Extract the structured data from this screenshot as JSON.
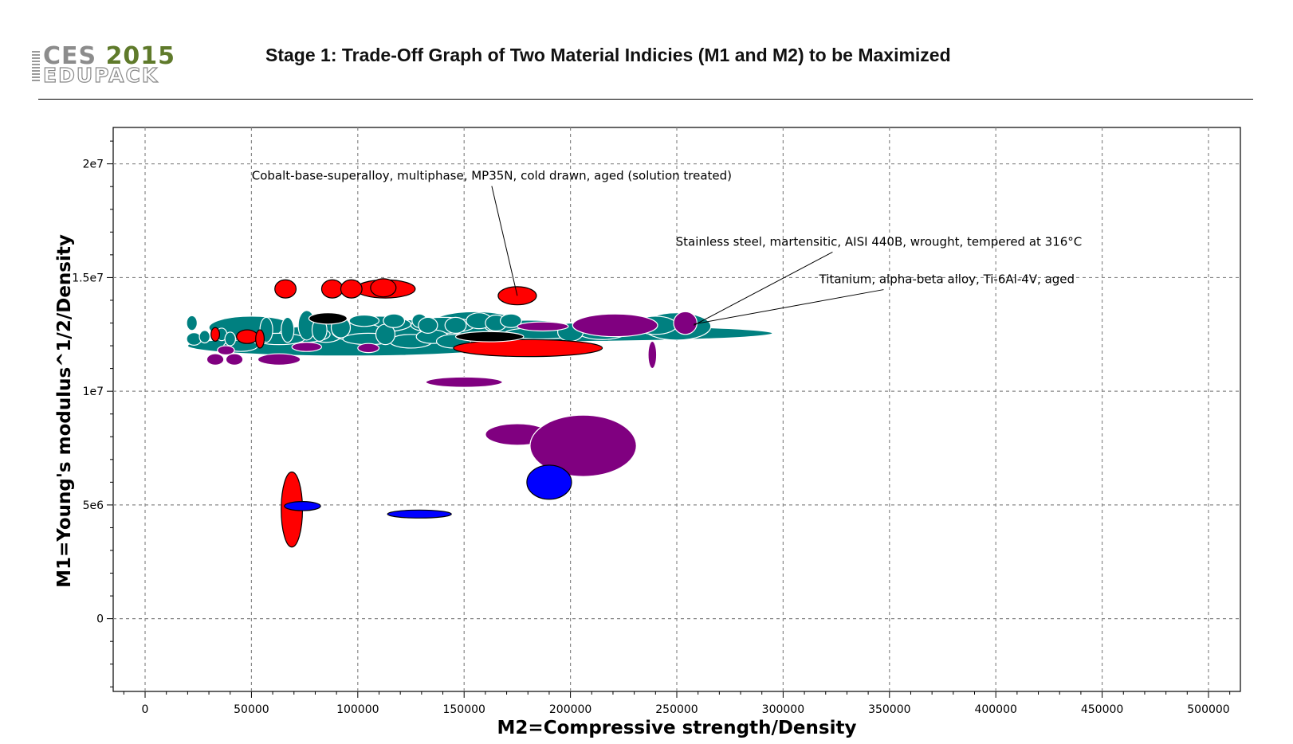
{
  "header": {
    "logo_main": "CES 2015",
    "logo_sub": "EDUPACK",
    "title": "Stage 1: Trade-Off Graph of Two Material Indicies (M1 and M2) to be Maximized"
  },
  "colors": {
    "teal": "#008080",
    "purple": "#800080",
    "red": "#ff0000",
    "black": "#000000",
    "blue": "#0000ff",
    "logo_dark": "#8c8c8c",
    "logo_green": "#5f7a2b"
  },
  "chart_data": {
    "type": "scatter",
    "subtype": "bubble-ellipses",
    "title": "",
    "xlabel": "M2=Compressive strength/Density",
    "ylabel": "M1=Young's modulus^1/2/Density",
    "xlim": [
      -15000,
      515000
    ],
    "ylim": [
      -3200000,
      21600000
    ],
    "x_ticks": [
      {
        "v": 0,
        "label": "0"
      },
      {
        "v": 50000,
        "label": "50000"
      },
      {
        "v": 100000,
        "label": "100000"
      },
      {
        "v": 150000,
        "label": "150000"
      },
      {
        "v": 200000,
        "label": "200000"
      },
      {
        "v": 250000,
        "label": "250000"
      },
      {
        "v": 300000,
        "label": "300000"
      },
      {
        "v": 350000,
        "label": "350000"
      },
      {
        "v": 400000,
        "label": "400000"
      },
      {
        "v": 450000,
        "label": "450000"
      },
      {
        "v": 500000,
        "label": "500000"
      }
    ],
    "y_ticks": [
      {
        "v": 0,
        "label": "0"
      },
      {
        "v": 5000000,
        "label": "5e6"
      },
      {
        "v": 10000000,
        "label": "1e7"
      },
      {
        "v": 15000000,
        "label": "1.5e7"
      },
      {
        "v": 20000000,
        "label": "2e7"
      }
    ],
    "grid": true,
    "legend": "none",
    "note": "Each material is drawn as an ellipse spanning its property range: x = M2 centre, y = M1 centre, w = M2 range width, h = M1 range height.",
    "series": [
      {
        "color": "teal",
        "items": [
          {
            "x": 170000,
            "y": 12550000,
            "w": 250000,
            "h": 750000
          },
          {
            "x": 95000,
            "y": 12000000,
            "w": 150000,
            "h": 900000
          },
          {
            "x": 50000,
            "y": 12800000,
            "w": 40000,
            "h": 1000000
          },
          {
            "x": 120000,
            "y": 12700000,
            "w": 40000,
            "h": 900000
          },
          {
            "x": 155000,
            "y": 13000000,
            "w": 40000,
            "h": 1000000
          },
          {
            "x": 85000,
            "y": 12800000,
            "w": 20000,
            "h": 1300000
          },
          {
            "x": 110000,
            "y": 12950000,
            "w": 30000,
            "h": 700000
          },
          {
            "x": 140000,
            "y": 12900000,
            "w": 30000,
            "h": 700000
          },
          {
            "x": 180000,
            "y": 12800000,
            "w": 40000,
            "h": 650000
          },
          {
            "x": 215000,
            "y": 12650000,
            "w": 24000,
            "h": 750000
          },
          {
            "x": 75000,
            "y": 12500000,
            "w": 24000,
            "h": 700000
          },
          {
            "x": 100000,
            "y": 12600000,
            "w": 24000,
            "h": 800000
          },
          {
            "x": 105000,
            "y": 12300000,
            "w": 24000,
            "h": 500000
          },
          {
            "x": 125000,
            "y": 12200000,
            "w": 20000,
            "h": 600000
          },
          {
            "x": 135000,
            "y": 12400000,
            "w": 15000,
            "h": 600000
          },
          {
            "x": 160000,
            "y": 12300000,
            "w": 16000,
            "h": 600000
          },
          {
            "x": 145000,
            "y": 12200000,
            "w": 16000,
            "h": 600000
          },
          {
            "x": 63000,
            "y": 12300000,
            "w": 24000,
            "h": 500000
          },
          {
            "x": 45000,
            "y": 12000000,
            "w": 16000,
            "h": 500000
          },
          {
            "x": 23000,
            "y": 12300000,
            "w": 7000,
            "h": 550000
          },
          {
            "x": 22000,
            "y": 13000000,
            "w": 5000,
            "h": 650000
          },
          {
            "x": 28000,
            "y": 12400000,
            "w": 5000,
            "h": 550000
          },
          {
            "x": 36000,
            "y": 12500000,
            "w": 5000,
            "h": 550000
          },
          {
            "x": 40000,
            "y": 12300000,
            "w": 5000,
            "h": 600000
          },
          {
            "x": 57000,
            "y": 12700000,
            "w": 6000,
            "h": 1100000
          },
          {
            "x": 67000,
            "y": 12700000,
            "w": 6000,
            "h": 1100000
          },
          {
            "x": 76000,
            "y": 12900000,
            "w": 8000,
            "h": 1300000
          },
          {
            "x": 82000,
            "y": 12700000,
            "w": 7000,
            "h": 1000000
          },
          {
            "x": 92000,
            "y": 12800000,
            "w": 9000,
            "h": 900000
          },
          {
            "x": 103000,
            "y": 13100000,
            "w": 14000,
            "h": 500000
          },
          {
            "x": 113000,
            "y": 12500000,
            "w": 9000,
            "h": 900000
          },
          {
            "x": 117000,
            "y": 13100000,
            "w": 10000,
            "h": 600000
          },
          {
            "x": 129000,
            "y": 13100000,
            "w": 7000,
            "h": 600000
          },
          {
            "x": 133000,
            "y": 12900000,
            "w": 9000,
            "h": 700000
          },
          {
            "x": 146000,
            "y": 12900000,
            "w": 10000,
            "h": 700000
          },
          {
            "x": 157000,
            "y": 13100000,
            "w": 12000,
            "h": 700000
          },
          {
            "x": 165000,
            "y": 13000000,
            "w": 10000,
            "h": 700000
          },
          {
            "x": 172000,
            "y": 13100000,
            "w": 10000,
            "h": 600000
          },
          {
            "x": 186000,
            "y": 12550000,
            "w": 34000,
            "h": 500000
          },
          {
            "x": 200000,
            "y": 12600000,
            "w": 12000,
            "h": 800000
          },
          {
            "x": 250000,
            "y": 12850000,
            "w": 32000,
            "h": 1200000
          },
          {
            "x": 240000,
            "y": 12900000,
            "w": 20000,
            "h": 800000
          }
        ]
      },
      {
        "color": "purple",
        "items": [
          {
            "x": 221000,
            "y": 12900000,
            "w": 40000,
            "h": 1000000
          },
          {
            "x": 187000,
            "y": 12850000,
            "w": 24000,
            "h": 400000
          },
          {
            "x": 38000,
            "y": 11800000,
            "w": 8000,
            "h": 400000
          },
          {
            "x": 105000,
            "y": 11900000,
            "w": 10000,
            "h": 400000
          },
          {
            "x": 76000,
            "y": 11950000,
            "w": 14000,
            "h": 400000
          },
          {
            "x": 33000,
            "y": 11400000,
            "w": 8000,
            "h": 500000
          },
          {
            "x": 42000,
            "y": 11400000,
            "w": 8000,
            "h": 500000
          },
          {
            "x": 63000,
            "y": 11400000,
            "w": 20000,
            "h": 500000
          },
          {
            "x": 238500,
            "y": 11600000,
            "w": 4000,
            "h": 1200000
          },
          {
            "x": 150000,
            "y": 10400000,
            "w": 36000,
            "h": 450000
          },
          {
            "x": 175000,
            "y": 8100000,
            "w": 30000,
            "h": 950000
          },
          {
            "x": 206000,
            "y": 7600000,
            "w": 50000,
            "h": 2700000
          },
          {
            "x": 254000,
            "y": 13000000,
            "w": 11000,
            "h": 1000000
          }
        ]
      },
      {
        "color": "red",
        "items": [
          {
            "x": 180000,
            "y": 11900000,
            "w": 70000,
            "h": 750000
          },
          {
            "x": 113000,
            "y": 14500000,
            "w": 28000,
            "h": 800000
          },
          {
            "x": 66000,
            "y": 14500000,
            "w": 10000,
            "h": 800000
          },
          {
            "x": 88000,
            "y": 14500000,
            "w": 10000,
            "h": 800000
          },
          {
            "x": 97000,
            "y": 14500000,
            "w": 10000,
            "h": 800000
          },
          {
            "x": 112000,
            "y": 14550000,
            "w": 12000,
            "h": 800000
          },
          {
            "x": 175000,
            "y": 14200000,
            "w": 18000,
            "h": 800000
          },
          {
            "x": 48000,
            "y": 12400000,
            "w": 10000,
            "h": 600000
          },
          {
            "x": 54000,
            "y": 12300000,
            "w": 4000,
            "h": 800000
          },
          {
            "x": 33000,
            "y": 12500000,
            "w": 4000,
            "h": 600000
          },
          {
            "x": 69000,
            "y": 4800000,
            "w": 10000,
            "h": 3300000
          }
        ]
      },
      {
        "color": "black",
        "items": [
          {
            "x": 162000,
            "y": 12400000,
            "w": 32000,
            "h": 450000
          },
          {
            "x": 86000,
            "y": 13200000,
            "w": 18000,
            "h": 500000
          }
        ]
      },
      {
        "color": "blue",
        "items": [
          {
            "x": 190000,
            "y": 6000000,
            "w": 21000,
            "h": 1500000
          },
          {
            "x": 129000,
            "y": 4600000,
            "w": 30000,
            "h": 350000
          },
          {
            "x": 74000,
            "y": 4950000,
            "w": 17000,
            "h": 400000
          }
        ]
      }
    ],
    "annotations": [
      {
        "text": "Cobalt-base-superalloy, multiphase, MP35N, cold drawn, aged (solution treated)",
        "label_x": 163000,
        "label_y": 19300000,
        "target_x": 175000,
        "target_y": 14200000
      },
      {
        "text": "Stainless steel, martensitic, AISI 440B, wrought, tempered at 316°C",
        "label_x": 345000,
        "label_y": 16400000,
        "target_x": 258000,
        "target_y": 12900000
      },
      {
        "text": "Titanium, alpha-beta alloy, Ti-6Al-4V, aged",
        "label_x": 377000,
        "label_y": 14750000,
        "target_x": 258000,
        "target_y": 12950000
      }
    ]
  }
}
